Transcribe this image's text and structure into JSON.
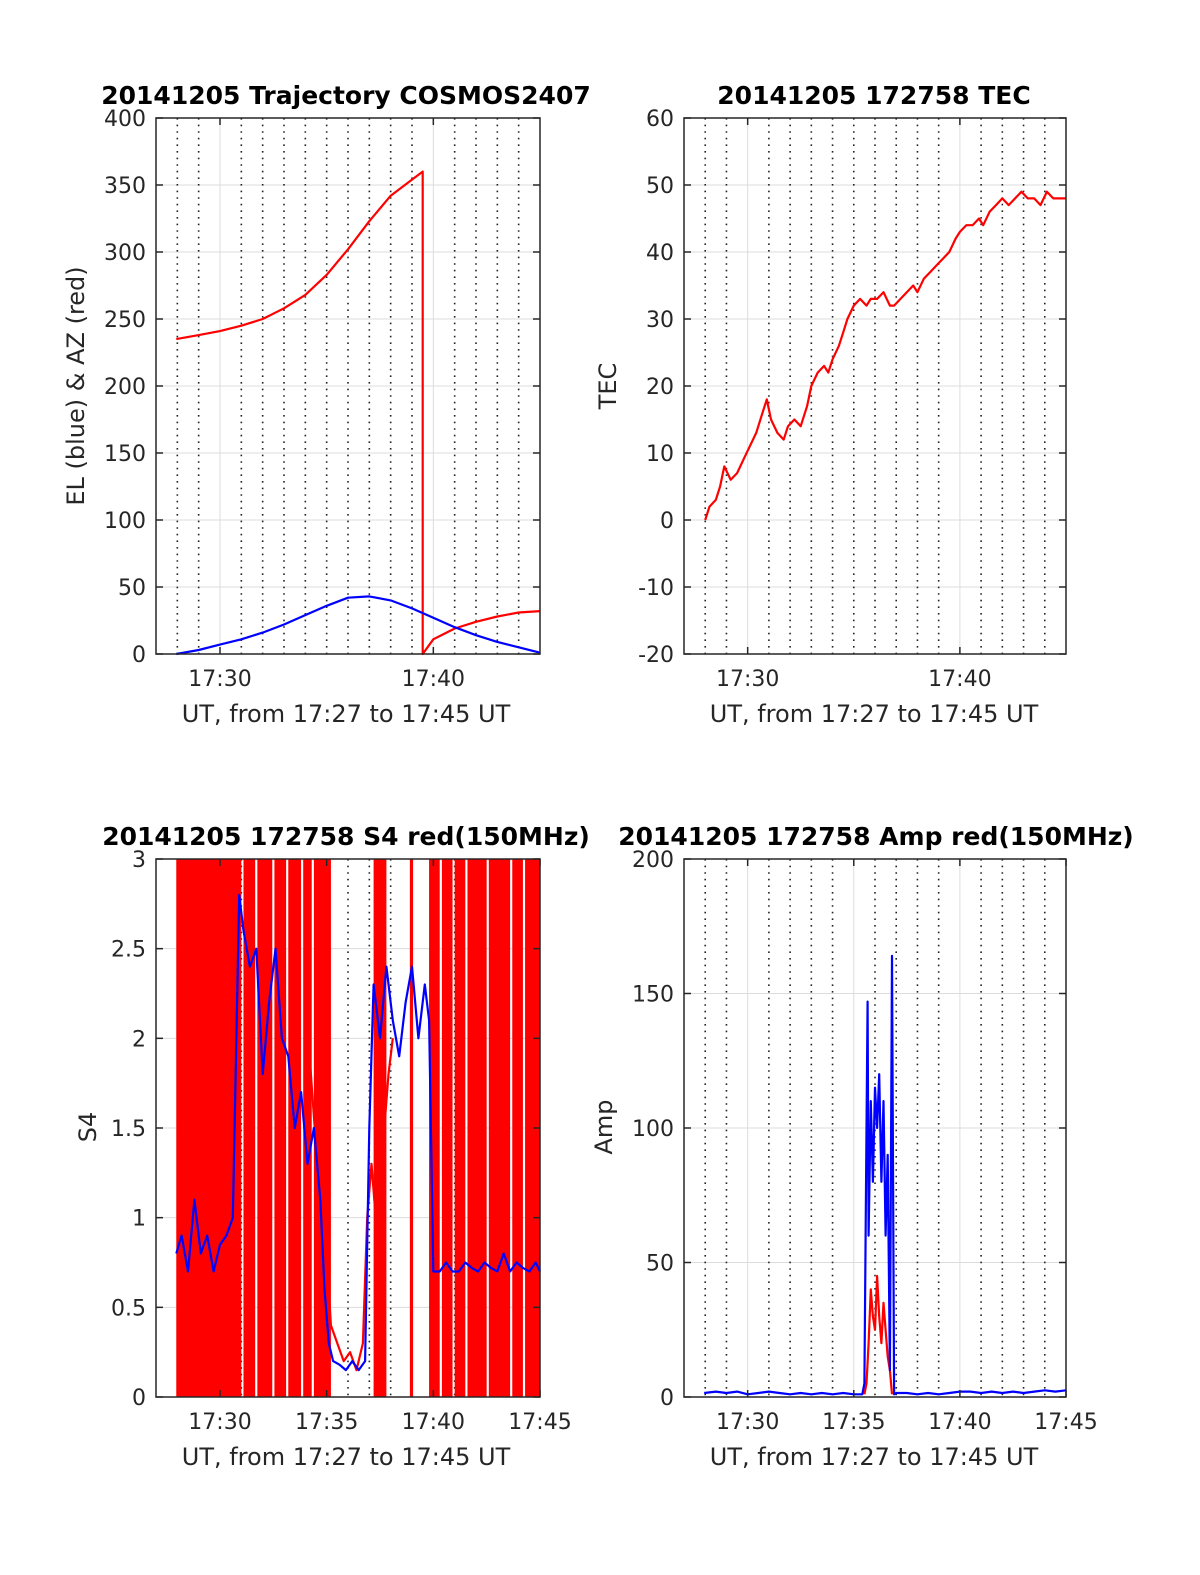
{
  "figure": {
    "background": "#ffffff"
  },
  "chart_data": [
    {
      "id": "trajectory",
      "type": "line",
      "title": "20141205 Trajectory COSMOS2407",
      "xlabel": "UT, from 17:27 to 17:45 UT",
      "ylabel": "EL (blue) & AZ (red)",
      "x_unit": "minutes after 17:00 UT",
      "xlim": [
        27.0,
        45.0
      ],
      "ylim": [
        0,
        400
      ],
      "x_ticks": [
        {
          "value": 30,
          "label": "17:30"
        },
        {
          "value": 40,
          "label": "17:40"
        }
      ],
      "y_ticks": [
        {
          "value": 0,
          "label": "0"
        },
        {
          "value": 50,
          "label": "50"
        },
        {
          "value": 100,
          "label": "100"
        },
        {
          "value": 150,
          "label": "150"
        },
        {
          "value": 200,
          "label": "200"
        },
        {
          "value": 250,
          "label": "250"
        },
        {
          "value": 300,
          "label": "300"
        },
        {
          "value": 350,
          "label": "350"
        },
        {
          "value": 400,
          "label": "400"
        }
      ],
      "minor_x_grid": [
        28,
        29,
        31,
        32,
        33,
        34,
        35,
        36,
        37,
        38,
        39,
        41,
        42,
        43,
        44
      ],
      "series": [
        {
          "color": "#ff0000",
          "x": [
            27.95,
            29,
            30,
            31,
            32,
            33,
            34,
            35,
            36,
            37,
            38,
            39,
            39.5,
            39.5,
            40,
            41,
            42,
            43,
            44,
            45
          ],
          "y": [
            235,
            238,
            241,
            245,
            250,
            258,
            268,
            283,
            302,
            323,
            342,
            354,
            360,
            0,
            11,
            19,
            24,
            28,
            31,
            32
          ]
        },
        {
          "color": "#0000ff",
          "x": [
            27.95,
            29,
            30,
            31,
            32,
            33,
            34,
            35,
            36,
            37,
            38,
            39,
            40,
            41,
            42,
            43,
            44,
            45
          ],
          "y": [
            0,
            3,
            7,
            11,
            16,
            22,
            29,
            36,
            42,
            43,
            40,
            34,
            27,
            20,
            14,
            9,
            5,
            1
          ]
        }
      ]
    },
    {
      "id": "tec",
      "type": "line",
      "title": "20141205 172758 TEC",
      "xlabel": "UT, from 17:27 to 17:45 UT",
      "ylabel": "TEC",
      "x_unit": "minutes after 17:00 UT",
      "xlim": [
        27.0,
        45.0
      ],
      "ylim": [
        -20,
        60
      ],
      "x_ticks": [
        {
          "value": 30,
          "label": "17:30"
        },
        {
          "value": 40,
          "label": "17:40"
        }
      ],
      "y_ticks": [
        {
          "value": -20,
          "label": "-20"
        },
        {
          "value": -10,
          "label": "-10"
        },
        {
          "value": 0,
          "label": "0"
        },
        {
          "value": 10,
          "label": "10"
        },
        {
          "value": 20,
          "label": "20"
        },
        {
          "value": 30,
          "label": "30"
        },
        {
          "value": 40,
          "label": "40"
        },
        {
          "value": 50,
          "label": "50"
        },
        {
          "value": 60,
          "label": "60"
        }
      ],
      "minor_x_grid": [
        28,
        29,
        31,
        32,
        33,
        34,
        35,
        36,
        37,
        38,
        39,
        41,
        42,
        43,
        44
      ],
      "series": [
        {
          "color": "#ff0000",
          "x": [
            28.0,
            28.2,
            28.5,
            28.7,
            28.9,
            29.2,
            29.5,
            29.8,
            30.1,
            30.4,
            30.7,
            30.9,
            31.1,
            31.4,
            31.7,
            31.9,
            32.2,
            32.5,
            32.8,
            33.0,
            33.3,
            33.6,
            33.8,
            34.0,
            34.3,
            34.5,
            34.7,
            35.0,
            35.3,
            35.6,
            35.8,
            36.1,
            36.4,
            36.7,
            36.9,
            37.2,
            37.5,
            37.8,
            38.0,
            38.3,
            38.6,
            38.9,
            39.2,
            39.5,
            39.8,
            40.0,
            40.3,
            40.6,
            40.9,
            41.1,
            41.4,
            41.7,
            42.0,
            42.3,
            42.6,
            42.9,
            43.2,
            43.5,
            43.8,
            44.1,
            44.4,
            44.7,
            45.0
          ],
          "y": [
            0,
            2,
            3,
            5,
            8,
            6,
            7,
            9,
            11,
            13,
            16,
            18,
            15,
            13,
            12,
            14,
            15,
            14,
            17,
            20,
            22,
            23,
            22,
            24,
            26,
            28,
            30,
            32,
            33,
            32,
            33,
            33,
            34,
            32,
            32,
            33,
            34,
            35,
            34,
            36,
            37,
            38,
            39,
            40,
            42,
            43,
            44,
            44,
            45,
            44,
            46,
            47,
            48,
            47,
            48,
            49,
            48,
            48,
            47,
            49,
            48,
            48,
            48
          ]
        }
      ]
    },
    {
      "id": "s4",
      "type": "line",
      "title": "20141205 172758 S4 red(150MHz)",
      "xlabel": "UT, from 17:27 to 17:45 UT",
      "ylabel": "S4",
      "x_unit": "minutes after 17:00 UT",
      "xlim": [
        27.0,
        45.0
      ],
      "ylim": [
        0,
        3
      ],
      "x_ticks": [
        {
          "value": 30,
          "label": "17:30"
        },
        {
          "value": 35,
          "label": "17:35"
        },
        {
          "value": 40,
          "label": "17:40"
        },
        {
          "value": 45,
          "label": "17:45"
        }
      ],
      "y_ticks": [
        {
          "value": 0,
          "label": "0"
        },
        {
          "value": 0.5,
          "label": "0.5"
        },
        {
          "value": 1,
          "label": "1"
        },
        {
          "value": 1.5,
          "label": "1.5"
        },
        {
          "value": 2,
          "label": "2"
        },
        {
          "value": 2.5,
          "label": "2.5"
        },
        {
          "value": 3,
          "label": "3"
        }
      ],
      "minor_x_grid": [
        28,
        29,
        31,
        32,
        33,
        34,
        36,
        37,
        38,
        39,
        41,
        42,
        43,
        44
      ],
      "red_fill": {
        "color": "#ff0000",
        "spans": [
          [
            27.95,
            31.0
          ],
          [
            31.1,
            31.65
          ],
          [
            31.75,
            32.45
          ],
          [
            32.55,
            33.1
          ],
          [
            33.2,
            33.8
          ],
          [
            33.9,
            34.3
          ],
          [
            34.4,
            35.2
          ],
          [
            37.2,
            37.8
          ],
          [
            38.9,
            39.05
          ],
          [
            39.8,
            40.3
          ],
          [
            40.4,
            40.9
          ],
          [
            41.0,
            41.5
          ],
          [
            41.6,
            42.5
          ],
          [
            42.6,
            43.6
          ],
          [
            43.7,
            44.2
          ],
          [
            44.3,
            45.0
          ]
        ]
      },
      "series": [
        {
          "color": "#ff0000",
          "x": [
            34.2,
            34.5,
            34.8,
            35.0,
            35.2,
            35.5,
            35.8,
            36.1,
            36.4,
            36.7,
            36.9,
            37.1,
            37.3,
            37.5,
            37.7,
            37.9,
            38.1
          ],
          "y": [
            1.9,
            1.4,
            0.9,
            0.8,
            0.4,
            0.3,
            0.2,
            0.25,
            0.15,
            0.3,
            1.0,
            1.3,
            1.0,
            1.2,
            1.5,
            1.8,
            2.0
          ]
        },
        {
          "color": "#0000ff",
          "x": [
            27.95,
            28.2,
            28.5,
            28.8,
            29.1,
            29.4,
            29.7,
            30.0,
            30.3,
            30.6,
            30.9,
            31.1,
            31.4,
            31.7,
            32.0,
            32.3,
            32.6,
            32.9,
            33.2,
            33.5,
            33.8,
            34.1,
            34.4,
            34.7,
            34.9,
            35.1,
            35.3,
            35.6,
            35.9,
            36.2,
            36.5,
            36.8,
            37.0,
            37.2,
            37.5,
            37.8,
            38.1,
            38.4,
            38.7,
            39.0,
            39.3,
            39.6,
            39.8,
            40.0,
            40.3,
            40.6,
            40.9,
            41.2,
            41.5,
            41.8,
            42.1,
            42.4,
            42.7,
            43.0,
            43.3,
            43.6,
            43.9,
            44.2,
            44.5,
            44.8,
            45.0
          ],
          "y": [
            0.8,
            0.9,
            0.7,
            1.1,
            0.8,
            0.9,
            0.7,
            0.85,
            0.9,
            1.0,
            2.8,
            2.6,
            2.4,
            2.5,
            1.8,
            2.2,
            2.5,
            2.0,
            1.9,
            1.5,
            1.7,
            1.3,
            1.5,
            1.1,
            0.6,
            0.3,
            0.2,
            0.18,
            0.15,
            0.2,
            0.15,
            0.2,
            1.5,
            2.3,
            2.0,
            2.4,
            2.1,
            1.9,
            2.2,
            2.4,
            2.0,
            2.3,
            2.1,
            0.7,
            0.7,
            0.75,
            0.7,
            0.7,
            0.75,
            0.72,
            0.7,
            0.75,
            0.72,
            0.7,
            0.8,
            0.7,
            0.75,
            0.72,
            0.7,
            0.75,
            0.7
          ]
        }
      ]
    },
    {
      "id": "amp",
      "type": "line",
      "title": "20141205 172758 Amp red(150MHz)",
      "xlabel": "UT, from 17:27 to 17:45 UT",
      "ylabel": "Amp",
      "x_unit": "minutes after 17:00 UT",
      "xlim": [
        27.0,
        45.0
      ],
      "ylim": [
        0,
        200
      ],
      "x_ticks": [
        {
          "value": 30,
          "label": "17:30"
        },
        {
          "value": 35,
          "label": "17:35"
        },
        {
          "value": 40,
          "label": "17:40"
        },
        {
          "value": 45,
          "label": "17:45"
        }
      ],
      "y_ticks": [
        {
          "value": 0,
          "label": "0"
        },
        {
          "value": 50,
          "label": "50"
        },
        {
          "value": 100,
          "label": "100"
        },
        {
          "value": 150,
          "label": "150"
        },
        {
          "value": 200,
          "label": "200"
        }
      ],
      "minor_x_grid": [
        28,
        29,
        31,
        32,
        33,
        34,
        36,
        37,
        38,
        39,
        41,
        42,
        43,
        44
      ],
      "series": [
        {
          "color": "#ff0000",
          "x": [
            35.5,
            35.6,
            35.7,
            35.8,
            35.9,
            36.0,
            36.1,
            36.2,
            36.3,
            36.4,
            36.5,
            36.6,
            36.7,
            36.8
          ],
          "y": [
            1,
            5,
            20,
            40,
            30,
            25,
            45,
            30,
            20,
            35,
            25,
            15,
            10,
            1
          ]
        },
        {
          "color": "#0000ff",
          "x": [
            27.95,
            28.5,
            29.0,
            29.5,
            30.0,
            30.5,
            31.0,
            31.5,
            32.0,
            32.5,
            33.0,
            33.5,
            34.0,
            34.5,
            35.0,
            35.4,
            35.5,
            35.6,
            35.65,
            35.7,
            35.8,
            35.9,
            36.0,
            36.1,
            36.2,
            36.3,
            36.4,
            36.5,
            36.6,
            36.7,
            36.8,
            36.9,
            37.0,
            37.5,
            38.0,
            38.5,
            39.0,
            39.5,
            40.0,
            40.5,
            41.0,
            41.5,
            42.0,
            42.5,
            43.0,
            43.5,
            44.0,
            44.5,
            45.0
          ],
          "y": [
            1.5,
            2,
            1.5,
            2,
            1,
            1.5,
            2,
            1.5,
            1,
            1.5,
            1,
            1.5,
            1,
            1.5,
            1,
            1,
            5,
            100,
            147,
            60,
            110,
            80,
            115,
            100,
            120,
            80,
            110,
            60,
            90,
            10,
            164,
            1,
            1.5,
            1.5,
            1,
            1.5,
            1,
            1.5,
            2,
            2,
            1.5,
            2,
            1.5,
            2,
            1.5,
            2,
            2.5,
            2,
            2.5
          ]
        }
      ]
    }
  ]
}
